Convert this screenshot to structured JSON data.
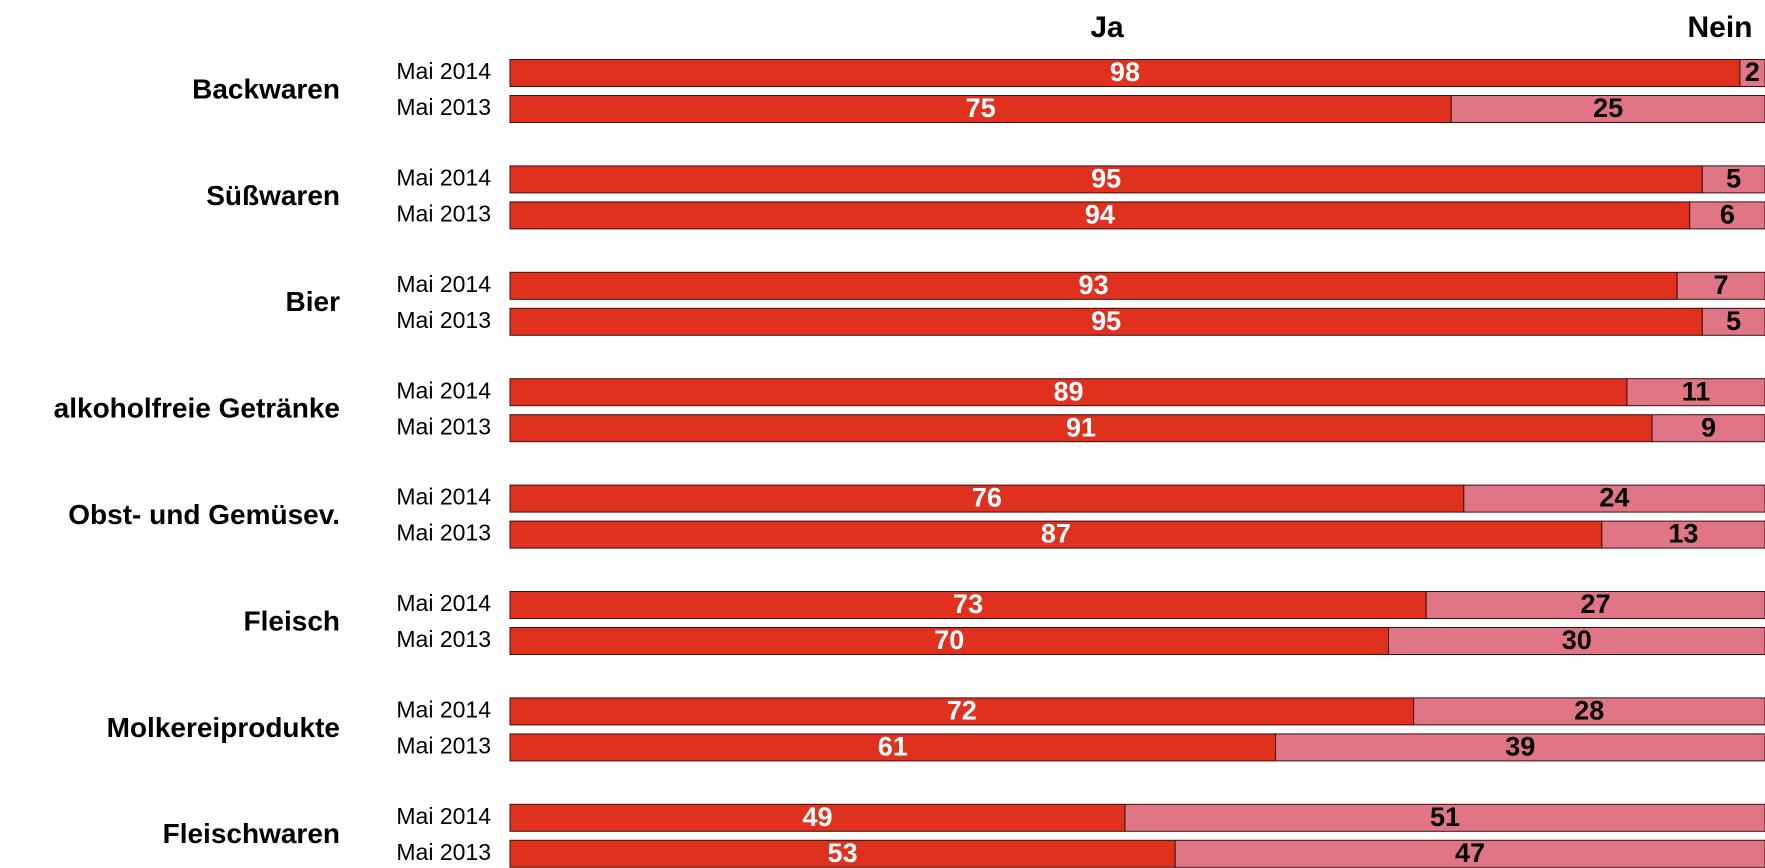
{
  "chart_data": {
    "type": "bar",
    "stacked": true,
    "orientation": "horizontal",
    "categories": [
      "Backwaren",
      "Süßwaren",
      "Bier",
      "alkoholfreie Getränke",
      "Obst- und Gemüsev.",
      "Fleisch",
      "Molkereiprodukte",
      "Fleischwaren"
    ],
    "periods": [
      "Mai 2014",
      "Mai 2013"
    ],
    "xlim": [
      0,
      100
    ],
    "series": [
      {
        "name": "Ja",
        "color": "#e0301e",
        "values": [
          [
            98,
            75
          ],
          [
            95,
            94
          ],
          [
            93,
            95
          ],
          [
            89,
            91
          ],
          [
            76,
            87
          ],
          [
            73,
            70
          ],
          [
            72,
            61
          ],
          [
            49,
            53
          ]
        ]
      },
      {
        "name": "Nein",
        "color": "#e07585",
        "values": [
          [
            2,
            25
          ],
          [
            5,
            6
          ],
          [
            7,
            5
          ],
          [
            11,
            9
          ],
          [
            24,
            13
          ],
          [
            27,
            30
          ],
          [
            28,
            39
          ],
          [
            51,
            47
          ]
        ]
      }
    ]
  }
}
